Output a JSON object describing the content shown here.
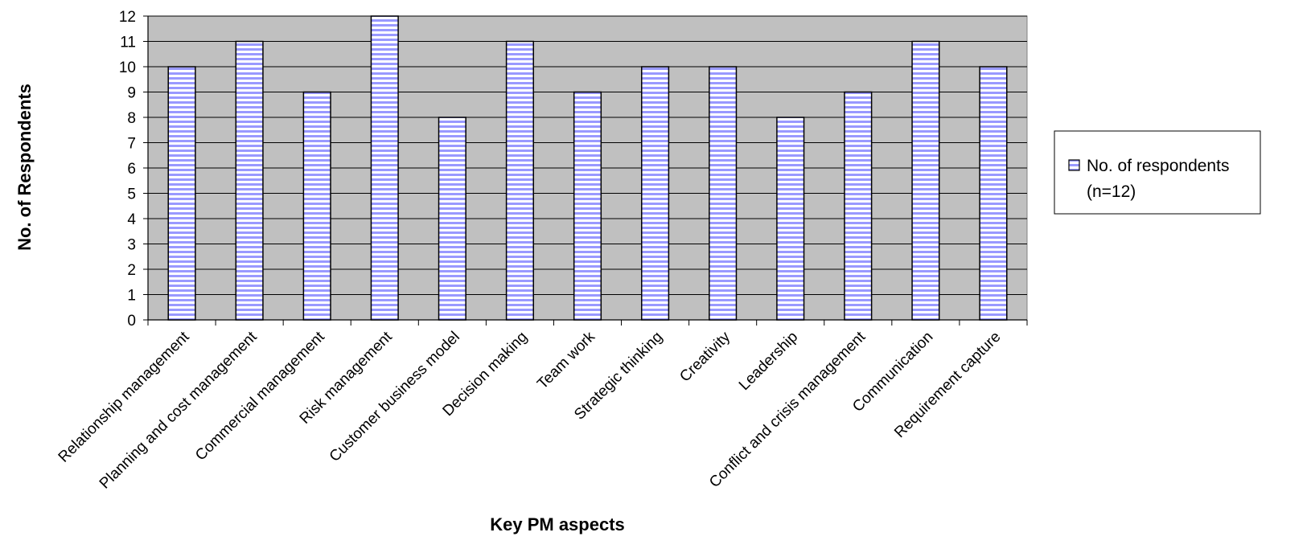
{
  "chart_data": {
    "type": "bar",
    "categories": [
      "Relationship management",
      "Planning and cost management",
      "Commercial management",
      "Risk management",
      "Customer business model",
      "Decision making",
      "Team work",
      "Strategic thinking",
      "Creativity",
      "Leadership",
      "Conflict and crisis management",
      "Communication",
      "Requirement capture"
    ],
    "series": [
      {
        "name": "No. of respondents (n=12)",
        "values": [
          10,
          11,
          9,
          12,
          8,
          11,
          9,
          10,
          10,
          8,
          9,
          11,
          10
        ]
      }
    ],
    "title": "",
    "xlabel": "Key PM aspects",
    "ylabel": "No. of Respondents",
    "ylim": [
      0,
      12
    ],
    "yticks": [
      0,
      1,
      2,
      3,
      4,
      5,
      6,
      7,
      8,
      9,
      10,
      11,
      12
    ],
    "grid": true,
    "legend_position": "right",
    "legend_lines": [
      "No. of respondents",
      "(n=12)"
    ],
    "colors": {
      "plot_background": "#c0c0c0",
      "bar_fill": "#9999ff",
      "bar_stripe": "#ffffff",
      "bar_edge": "#000000",
      "gridline": "#000000"
    }
  }
}
